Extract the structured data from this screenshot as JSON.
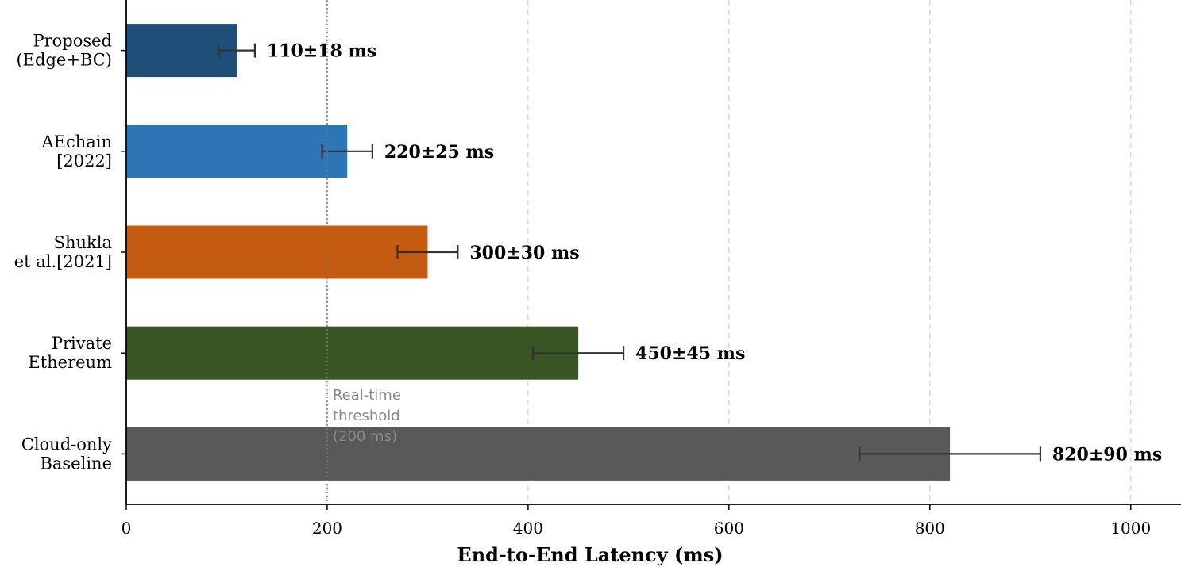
{
  "chart_data": {
    "type": "bar",
    "orientation": "horizontal",
    "categories": [
      [
        "Proposed",
        "(Edge+BC)"
      ],
      [
        "AEchain",
        "[2022]"
      ],
      [
        "Shukla",
        "et al.[2021]"
      ],
      [
        "Private",
        "Ethereum"
      ],
      [
        "Cloud-only",
        "Baseline"
      ]
    ],
    "values": [
      110,
      220,
      300,
      450,
      820
    ],
    "errors": [
      18,
      25,
      30,
      45,
      90
    ],
    "value_labels": [
      "110±18 ms",
      "220±25 ms",
      "300±30 ms",
      "450±45 ms",
      "820±90 ms"
    ],
    "colors": [
      "#1f4e79",
      "#2e75b6",
      "#c55a11",
      "#375623",
      "#595959"
    ],
    "xlabel": "End-to-End Latency (ms)",
    "xlim": [
      0,
      1050
    ],
    "xticks": [
      0,
      200,
      400,
      600,
      800,
      1000
    ],
    "grid": "vertical dashed",
    "threshold": {
      "value": 200,
      "label": [
        "Real-time",
        "threshold",
        "(200 ms)"
      ]
    }
  }
}
